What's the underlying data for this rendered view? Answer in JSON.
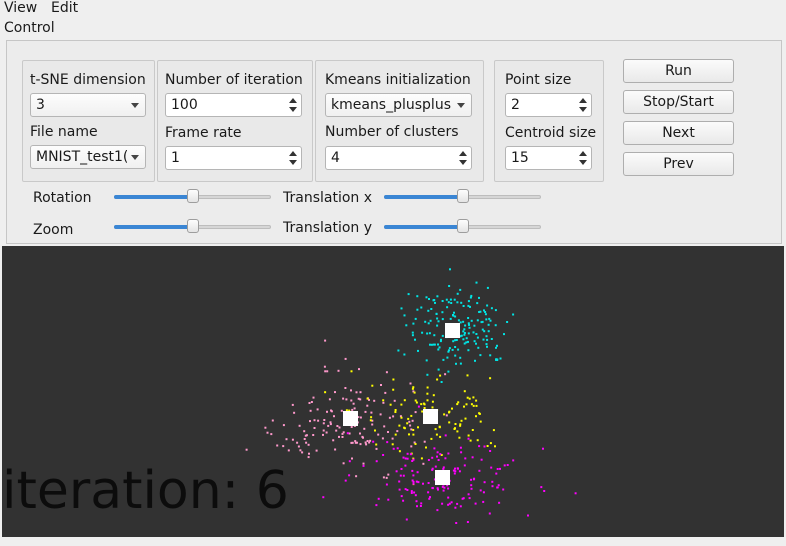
{
  "menu": {
    "view": "View",
    "edit": "Edit"
  },
  "control": {
    "title": "Control",
    "tsne_dimension": {
      "label": "t-SNE dimension",
      "value": "3"
    },
    "file_name": {
      "label": "File name",
      "value": "MNIST_test1("
    },
    "iterations": {
      "label": "Number of iterations",
      "value": "100"
    },
    "frame_rate": {
      "label": "Frame rate",
      "value": "1"
    },
    "kmeans_init": {
      "label": "Kmeans initialization",
      "value": "kmeans_plusplus"
    },
    "num_clusters": {
      "label": "Number of clusters",
      "value": "4"
    },
    "point_size": {
      "label": "Point size",
      "value": "2"
    },
    "centroid_size": {
      "label": "Centroid size",
      "value": "15"
    },
    "buttons": {
      "run": "Run",
      "stop_start": "Stop/Start",
      "next": "Next",
      "prev": "Prev"
    },
    "sliders": {
      "rotation": {
        "label": "Rotation",
        "fraction": 0.5
      },
      "zoom": {
        "label": "Zoom",
        "fraction": 0.5
      },
      "translation_x": {
        "label": "Translation x",
        "fraction": 0.5
      },
      "translation_y": {
        "label": "Translation y",
        "fraction": 0.5
      }
    }
  },
  "viewport": {
    "iteration_text": "iteration: 6",
    "background": "#323232",
    "accent": "#3b86d4",
    "cluster_colors": [
      "#00e5e5",
      "#ff99cc",
      "#ffff00",
      "#ff00ff"
    ],
    "centroid_color": "#ffffff"
  }
}
